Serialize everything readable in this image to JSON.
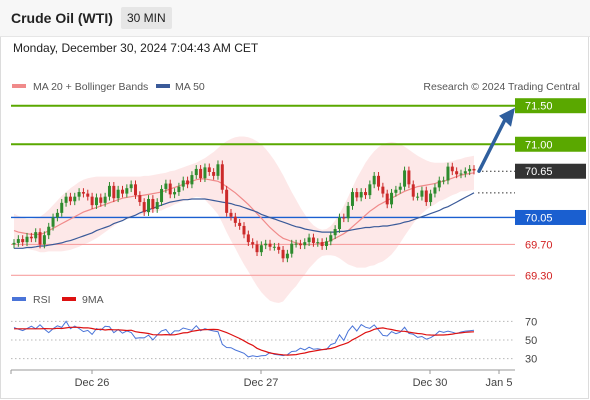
{
  "header": {
    "title": "Crude Oil (WTI)",
    "timeframe": "30 MIN",
    "datetime": "Monday, December 30, 2024 7:04:43 AM CET"
  },
  "legend": {
    "ma20": "MA 20 + Bollinger Bands",
    "ma50": "MA 50",
    "credit": "Research © 2024 Trading Central",
    "rsi": "RSI",
    "rsi_ma": "9MA"
  },
  "colors": {
    "ma20": "#f08a8a",
    "ma50": "#3a5a99",
    "bull": "#2e8b2e",
    "bear": "#cc2a2a",
    "target": "#5aa800",
    "pivot": "#1a5fd0",
    "support": "#f7a0a0",
    "support_text": "#d22222",
    "last": "#333333",
    "arrow": "#2f5f9e",
    "band": "#fde4e4",
    "rsi": "#4a74d8",
    "rsi_ma": "#dd1111"
  },
  "chart_data": [
    {
      "type": "candlestick",
      "y_axis": "price",
      "ylim": [
        69.2,
        71.6
      ],
      "x_ticks": [
        "Dec 26",
        "Dec 27",
        "Dec 30",
        "Jan 5"
      ],
      "last_price": {
        "value": 70.65,
        "label": "70.65"
      },
      "levels": [
        {
          "value": 71.5,
          "label": "71.50",
          "role": "target-2"
        },
        {
          "value": 71.0,
          "label": "71.00",
          "role": "target-1"
        },
        {
          "value": 70.05,
          "label": "70.05",
          "role": "pivot"
        },
        {
          "value": 69.7,
          "label": "69.70",
          "role": "support-1"
        },
        {
          "value": 69.3,
          "label": "69.30",
          "role": "support-2"
        }
      ],
      "close": [
        69.72,
        69.77,
        69.73,
        69.8,
        69.78,
        69.86,
        69.7,
        69.82,
        69.93,
        70.05,
        70.11,
        70.24,
        70.32,
        70.26,
        70.32,
        70.38,
        70.36,
        70.32,
        70.21,
        70.31,
        70.24,
        70.32,
        70.46,
        70.3,
        70.41,
        70.36,
        70.43,
        70.48,
        70.34,
        70.25,
        70.12,
        70.29,
        70.16,
        70.25,
        70.42,
        70.49,
        70.35,
        70.38,
        70.45,
        70.53,
        70.48,
        70.6,
        70.68,
        70.56,
        70.7,
        70.64,
        70.59,
        70.74,
        70.41,
        70.11,
        70.06,
        69.98,
        69.94,
        69.83,
        69.73,
        69.7,
        69.6,
        69.69,
        69.71,
        69.67,
        69.67,
        69.63,
        69.52,
        69.58,
        69.71,
        69.71,
        69.69,
        69.73,
        69.79,
        69.72,
        69.73,
        69.68,
        69.74,
        69.82,
        69.9,
        70.05,
        70.04,
        70.2,
        70.38,
        70.31,
        70.38,
        70.34,
        70.48,
        70.59,
        70.45,
        70.36,
        70.22,
        70.37,
        70.41,
        70.45,
        70.66,
        70.48,
        70.32,
        70.32,
        70.4,
        70.25,
        70.36,
        70.44,
        70.53,
        70.53,
        70.71,
        70.65,
        70.61,
        70.62,
        70.65,
        70.68,
        70.66
      ],
      "ma20": [
        69.88,
        69.86,
        69.85,
        69.84,
        69.83,
        69.83,
        69.83,
        69.85,
        69.88,
        69.91,
        69.94,
        69.97,
        70.0,
        70.03,
        70.06,
        70.09,
        70.12,
        70.14,
        70.16,
        70.18,
        70.2,
        70.22,
        70.24,
        70.26,
        70.28,
        70.3,
        70.31,
        70.32,
        70.33,
        70.33,
        70.34,
        70.35,
        70.36,
        70.37,
        70.38,
        70.4,
        70.42,
        70.44,
        70.46,
        70.48,
        70.5,
        70.52,
        70.54,
        70.55,
        70.55,
        70.54,
        70.53,
        70.52,
        70.49,
        70.45,
        70.41,
        70.37,
        70.32,
        70.27,
        70.22,
        70.16,
        70.1,
        70.04,
        69.98,
        69.92,
        69.87,
        69.82,
        69.78,
        69.76,
        69.74,
        69.72,
        69.71,
        69.7,
        69.7,
        69.7,
        69.71,
        69.72,
        69.73,
        69.75,
        69.78,
        69.81,
        69.84,
        69.88,
        69.93,
        69.98,
        70.03,
        70.08,
        70.13,
        70.17,
        70.21,
        70.24,
        70.27,
        70.3,
        70.33,
        70.36,
        70.39,
        70.41,
        70.43,
        70.45,
        70.46,
        70.47,
        70.48,
        70.49,
        70.51,
        70.52,
        70.54,
        70.56,
        70.58,
        70.6,
        70.61,
        70.62,
        70.63
      ],
      "bb_upper": [
        70.1,
        70.07,
        70.05,
        70.03,
        70.03,
        70.04,
        70.06,
        70.1,
        70.15,
        70.21,
        70.27,
        70.33,
        70.38,
        70.43,
        70.47,
        70.51,
        70.54,
        70.56,
        70.57,
        70.58,
        70.58,
        70.58,
        70.58,
        70.58,
        70.58,
        70.58,
        70.58,
        70.58,
        70.58,
        70.58,
        70.59,
        70.59,
        70.6,
        70.61,
        70.62,
        70.63,
        70.65,
        70.66,
        70.68,
        70.7,
        70.72,
        70.74,
        70.76,
        70.79,
        70.82,
        70.86,
        70.9,
        70.95,
        71.0,
        71.04,
        71.07,
        71.09,
        71.1,
        71.1,
        71.09,
        71.07,
        71.04,
        71.0,
        70.94,
        70.87,
        70.79,
        70.7,
        70.6,
        70.49,
        70.38,
        70.28,
        70.18,
        70.09,
        70.01,
        69.95,
        69.91,
        69.89,
        69.9,
        69.94,
        70.01,
        70.1,
        70.2,
        70.32,
        70.44,
        70.56,
        70.66,
        70.76,
        70.84,
        70.91,
        70.96,
        71.0,
        71.02,
        71.03,
        71.02,
        71.0,
        70.97,
        70.93,
        70.89,
        70.85,
        70.82,
        70.79,
        70.77,
        70.76,
        70.76,
        70.76,
        70.77,
        70.78,
        70.8,
        70.81,
        70.83,
        70.84,
        70.85
      ],
      "bb_lower": [
        69.66,
        69.65,
        69.65,
        69.65,
        69.63,
        69.62,
        69.6,
        69.6,
        69.61,
        69.61,
        69.61,
        69.61,
        69.62,
        69.63,
        69.65,
        69.67,
        69.7,
        69.72,
        69.75,
        69.78,
        69.82,
        69.86,
        69.9,
        69.94,
        69.98,
        70.02,
        70.04,
        70.06,
        70.08,
        70.08,
        70.09,
        70.11,
        70.12,
        70.13,
        70.14,
        70.17,
        70.19,
        70.22,
        70.24,
        70.26,
        70.28,
        70.3,
        70.32,
        70.31,
        70.28,
        70.22,
        70.16,
        70.09,
        69.98,
        69.86,
        69.75,
        69.65,
        69.54,
        69.44,
        69.35,
        69.25,
        69.16,
        69.08,
        69.02,
        68.97,
        68.95,
        68.94,
        68.96,
        69.03,
        69.1,
        69.16,
        69.24,
        69.31,
        69.39,
        69.45,
        69.51,
        69.55,
        69.56,
        69.56,
        69.55,
        69.52,
        69.48,
        69.44,
        69.42,
        69.4,
        69.4,
        69.4,
        69.42,
        69.43,
        69.46,
        69.48,
        69.52,
        69.57,
        69.64,
        69.72,
        69.81,
        69.89,
        69.97,
        70.05,
        70.1,
        70.15,
        70.19,
        70.22,
        70.26,
        70.28,
        70.31,
        70.34,
        70.36,
        70.39,
        70.39,
        70.4,
        70.41
      ],
      "ma50": [
        69.65,
        69.65,
        69.65,
        69.66,
        69.66,
        69.67,
        69.68,
        69.68,
        69.69,
        69.7,
        69.71,
        69.72,
        69.74,
        69.75,
        69.77,
        69.79,
        69.81,
        69.83,
        69.85,
        69.88,
        69.9,
        69.92,
        69.94,
        69.97,
        69.99,
        70.01,
        70.04,
        70.06,
        70.08,
        70.11,
        70.13,
        70.15,
        70.17,
        70.19,
        70.21,
        70.23,
        70.25,
        70.26,
        70.27,
        70.28,
        70.28,
        70.29,
        70.29,
        70.29,
        70.29,
        70.28,
        70.27,
        70.26,
        70.25,
        70.24,
        70.23,
        70.21,
        70.2,
        70.18,
        70.16,
        70.14,
        70.12,
        70.09,
        70.07,
        70.05,
        70.03,
        70.01,
        69.99,
        69.97,
        69.95,
        69.93,
        69.92,
        69.9,
        69.89,
        69.88,
        69.87,
        69.86,
        69.86,
        69.86,
        69.86,
        69.87,
        69.87,
        69.88,
        69.89,
        69.9,
        69.91,
        69.92,
        69.92,
        69.93,
        69.93,
        69.94,
        69.94,
        69.95,
        69.96,
        69.97,
        69.99,
        70.0,
        70.02,
        70.04,
        70.06,
        70.08,
        70.1,
        70.12,
        70.14,
        70.17,
        70.19,
        70.22,
        70.25,
        70.28,
        70.31,
        70.34,
        70.37
      ]
    },
    {
      "type": "line",
      "y_axis": "rsi",
      "ylim": [
        20,
        80
      ],
      "yticks": [
        30,
        50,
        70
      ],
      "rsi": [
        63.4,
        61.6,
        60.1,
        62.2,
        64.8,
        62.0,
        66.3,
        61.7,
        57.9,
        62.1,
        65.2,
        63.5,
        70.0,
        62.1,
        64.9,
        62.3,
        59.0,
        60.3,
        56.0,
        62.2,
        60.5,
        64.7,
        64.2,
        57.8,
        61.3,
        57.3,
        59.7,
        58.0,
        51.8,
        52.4,
        52.2,
        55.3,
        50.1,
        55.2,
        59.8,
        61.3,
        55.5,
        59.7,
        59.7,
        62.9,
        61.6,
        60.4,
        65.3,
        60.0,
        62.1,
        60.7,
        59.6,
        58.9,
        45.4,
        42.0,
        41.7,
        39.3,
        37.6,
        35.8,
        31.9,
        33.1,
        32.2,
        33.2,
        33.4,
        36.6,
        34.6,
        34.0,
        33.3,
        34.3,
        37.7,
        38.1,
        41.2,
        39.4,
        42.3,
        40.1,
        40.6,
        39.7,
        39.8,
        45.1,
        46.7,
        55.6,
        49.5,
        59.6,
        65.1,
        59.6,
        66.5,
        63.7,
        62.5,
        66.2,
        60.8,
        54.9,
        54.3,
        59.0,
        56.7,
        58.4,
        63.7,
        57.1,
        56.2,
        52.8,
        53.8,
        50.9,
        52.5,
        55.3,
        59.4,
        58.2,
        59.5,
        58.4,
        56.9,
        58.6,
        59.5,
        60.0,
        60.4
      ],
      "rsi_ma": [
        62.0,
        62.0,
        62.0,
        62.0,
        62.0,
        62.0,
        62.0,
        62.2,
        62.1,
        62.0,
        62.5,
        62.3,
        63.0,
        63.6,
        63.6,
        63.6,
        63.0,
        63.1,
        62.3,
        61.2,
        61.6,
        60.7,
        61.2,
        60.9,
        60.9,
        60.6,
        60.2,
        60.5,
        58.9,
        58.1,
        57.6,
        57.0,
        55.7,
        55.6,
        55.5,
        55.8,
        55.5,
        55.6,
        56.5,
        57.6,
        57.9,
        59.3,
        60.1,
        60.8,
        61.0,
        61.3,
        61.4,
        61.1,
        59.5,
        57.9,
        55.9,
        53.7,
        51.6,
        49.1,
        46.5,
        44.3,
        41.1,
        39.1,
        37.7,
        36.1,
        35.3,
        34.7,
        34.1,
        33.8,
        34.0,
        34.4,
        35.3,
        36.1,
        37.3,
        38.0,
        38.9,
        39.6,
        40.4,
        40.9,
        42.2,
        44.0,
        45.5,
        47.2,
        50.2,
        52.6,
        55.2,
        57.9,
        59.3,
        61.5,
        62.4,
        63.0,
        62.0,
        61.2,
        60.2,
        59.4,
        59.3,
        58.5,
        57.7,
        57.0,
        56.6,
        55.6,
        55.4,
        55.3,
        55.4,
        55.4,
        55.8,
        56.3,
        57.2,
        57.6,
        58.3,
        58.6,
        58.8
      ]
    }
  ]
}
